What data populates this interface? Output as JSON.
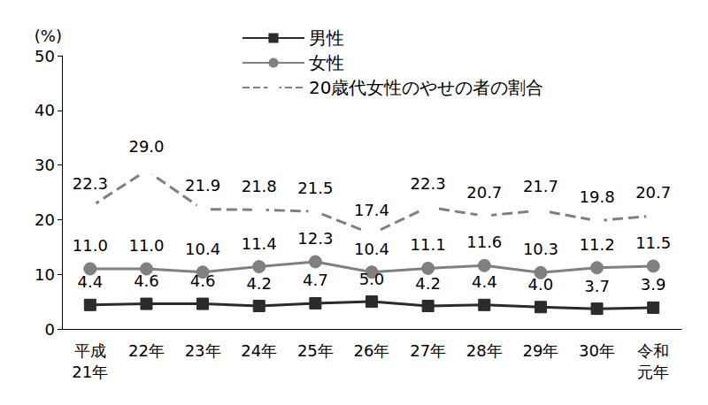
{
  "chart_data": {
    "type": "line",
    "ylabel": "(%)",
    "categories": [
      "平成\n21年",
      "22年",
      "23年",
      "24年",
      "25年",
      "26年",
      "27年",
      "28年",
      "29年",
      "30年",
      "令和\n元年"
    ],
    "series": [
      {
        "name": "男性",
        "color": "#2b2b2b",
        "marker": "square",
        "line_style": "solid",
        "values": [
          4.4,
          4.6,
          4.6,
          4.2,
          4.7,
          5.0,
          4.2,
          4.4,
          4.0,
          3.7,
          3.9
        ]
      },
      {
        "name": "女性",
        "color": "#808080",
        "marker": "circle",
        "line_style": "solid",
        "values": [
          11.0,
          11.0,
          10.4,
          11.4,
          12.3,
          10.4,
          11.1,
          11.6,
          10.3,
          11.2,
          11.5
        ]
      },
      {
        "name": "20歳代女性のやせの者の割合",
        "color": "#808080",
        "marker": "open_circle",
        "line_style": "dashed",
        "values": [
          22.3,
          29.0,
          21.9,
          21.8,
          21.5,
          17.4,
          22.3,
          20.7,
          21.7,
          19.8,
          20.7
        ]
      }
    ],
    "ylim": [
      0,
      50
    ],
    "yticks": [
      0,
      10,
      20,
      30,
      40,
      50
    ],
    "grid": false,
    "legend": "top",
    "data_labels": true
  }
}
